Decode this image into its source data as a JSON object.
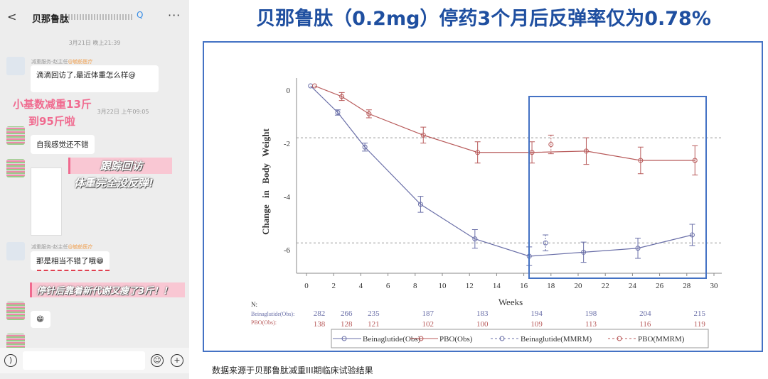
{
  "phone": {
    "title": "贝那鲁肽",
    "timestamps": [
      "3月21日 晚上21:39",
      "3月22日 上午09:05"
    ],
    "sender": "减重服务-赵主任",
    "sender_org": "@毓舫医疗",
    "messages": [
      "滴滴回访了,最近体重怎么样@",
      "自我感觉还不错",
      "那是相当不错了哦😁",
      "😁"
    ],
    "overlays": [
      "小基数减重13斤",
      "到95斤啦",
      "跟踪回访",
      "体重完全没反弹!",
      "停针后靠着新代谢又瘦了3斤！！"
    ]
  },
  "slide": {
    "title": "贝那鲁肽（0.2mg）停药3个月后反弹率仅为0.78%",
    "footnote": "数据来源于贝那鲁肽减重III期临床试验结果"
  },
  "chart_data": {
    "type": "line",
    "xlabel": "Weeks",
    "ylabel": "Change in Body Weight",
    "xlim": [
      -1,
      31
    ],
    "ylim": [
      -6.8,
      0.3
    ],
    "xticks": [
      0,
      2,
      4,
      6,
      8,
      10,
      12,
      14,
      16,
      18,
      20,
      22,
      24,
      26,
      28,
      30
    ],
    "yticks": [
      0,
      -2,
      -4,
      -6
    ],
    "reference_lines": [
      -1.95,
      -5.9
    ],
    "series": [
      {
        "name": "Beinaglutide(Obs)",
        "color": "#6a6fa8",
        "dashed": false,
        "x": [
          0.3,
          2.3,
          4.3,
          8.4,
          12.4,
          16.4,
          20.4,
          24.4,
          28.4
        ],
        "y": [
          0,
          -1.0,
          -2.3,
          -4.45,
          -5.75,
          -6.4,
          -6.25,
          -6.1,
          -5.6
        ],
        "err": [
          0,
          0.1,
          0.15,
          0.3,
          0.35,
          0.35,
          0.38,
          0.38,
          0.4
        ]
      },
      {
        "name": "PBO(Obs)",
        "color": "#b85a5a",
        "dashed": false,
        "x": [
          0.6,
          2.6,
          4.6,
          8.6,
          12.6,
          16.6,
          20.6,
          24.6,
          28.6
        ],
        "y": [
          0,
          -0.4,
          -1.05,
          -1.85,
          -2.5,
          -2.5,
          -2.45,
          -2.8,
          -2.8
        ],
        "err": [
          0,
          0.15,
          0.15,
          0.3,
          0.4,
          0.4,
          0.5,
          0.5,
          0.55
        ]
      },
      {
        "name": "Beinaglutide(MMRM)",
        "color": "#6a6fa8",
        "dashed": true,
        "x": [
          17.6
        ],
        "y": [
          -5.9
        ],
        "err": [
          0.3
        ]
      },
      {
        "name": "PBO(MMRM)",
        "color": "#b85a5a",
        "dashed": true,
        "x": [
          18.0
        ],
        "y": [
          -2.2
        ],
        "err": [
          0.35
        ]
      }
    ],
    "n_table": {
      "label": "N:",
      "rows": [
        {
          "name": "Beinaglutide(Obs):",
          "values": [
            "282",
            "266",
            "235",
            "187",
            "183",
            "194",
            "198",
            "204",
            "215"
          ]
        },
        {
          "name": "PBO(Obs):",
          "values": [
            "138",
            "128",
            "121",
            "102",
            "100",
            "109",
            "113",
            "116",
            "119"
          ]
        }
      ]
    }
  }
}
